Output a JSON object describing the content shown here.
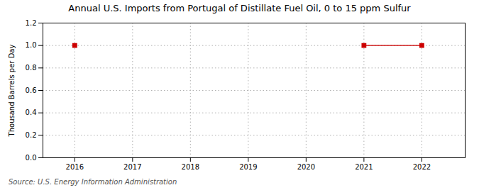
{
  "chart_data": {
    "type": "line",
    "title": "Annual U.S. Imports from Portugal of Distillate Fuel Oil, 0 to 15 ppm Sulfur",
    "ylabel": "Thousand Barrels per Day",
    "source": "Source: U.S. Energy Information Administration",
    "x": [
      2016,
      2017,
      2018,
      2019,
      2020,
      2021,
      2022
    ],
    "values": [
      1.0,
      null,
      null,
      null,
      null,
      1.0,
      1.0
    ],
    "color": "#cc0000",
    "marker": "square",
    "line_style": "solid",
    "xlim": [
      2015.45,
      2022.75
    ],
    "xticks": [
      2016,
      2017,
      2018,
      2019,
      2020,
      2021,
      2022
    ],
    "ylim": [
      0.0,
      1.2
    ],
    "yticks": [
      {
        "value": 0,
        "label": "0.0"
      },
      0.2,
      0.4,
      0.6,
      0.8,
      {
        "value": 1,
        "label": "1.0"
      },
      1.2
    ],
    "grid": true
  }
}
